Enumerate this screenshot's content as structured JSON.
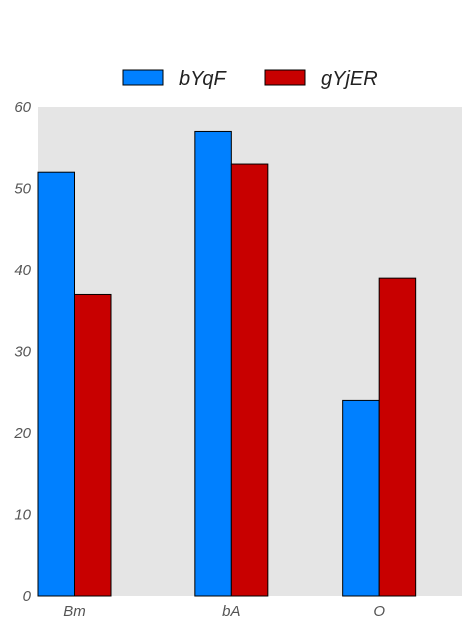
{
  "chart_data": {
    "type": "bar",
    "categories": [
      "Bm",
      "bA",
      "O"
    ],
    "series": [
      {
        "name": "bYqF",
        "values": [
          52,
          57,
          24
        ],
        "color": "#0080ff"
      },
      {
        "name": "gYjER",
        "values": [
          37,
          53,
          39
        ],
        "color": "#c80000"
      }
    ],
    "ylim": [
      0,
      60
    ],
    "yticks": [
      "0",
      "10",
      "20",
      "30",
      "40",
      "50",
      "60"
    ],
    "xlabel": "",
    "ylabel": "",
    "title": "",
    "grid": false,
    "legend": "top-center",
    "plot_background": "#e5e5e5"
  }
}
